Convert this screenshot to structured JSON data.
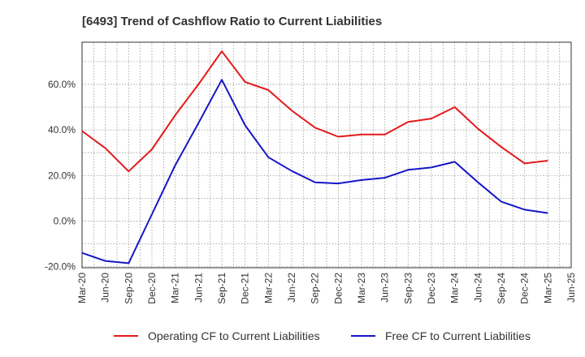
{
  "chart_data": {
    "type": "line",
    "title": "[6493]  Trend of Cashflow Ratio to Current Liabilities",
    "xlabel": "",
    "ylabel": "",
    "x": [
      "Mar-20",
      "Jun-20",
      "Sep-20",
      "Dec-20",
      "Mar-21",
      "Jun-21",
      "Sep-21",
      "Dec-21",
      "Mar-22",
      "Jun-22",
      "Sep-22",
      "Dec-22",
      "Mar-23",
      "Jun-23",
      "Sep-23",
      "Dec-23",
      "Mar-24",
      "Jun-24",
      "Sep-24",
      "Dec-24",
      "Mar-25",
      "Jun-25"
    ],
    "x_tick_labels": [
      "Mar-20",
      "Jun-20",
      "Sep-20",
      "Dec-20",
      "Mar-21",
      "Jun-21",
      "Sep-21",
      "Dec-21",
      "Mar-22",
      "Jun-22",
      "Sep-22",
      "Dec-22",
      "Mar-23",
      "Jun-23",
      "Sep-23",
      "Dec-23",
      "Mar-24",
      "Jun-24",
      "Sep-24",
      "Dec-24",
      "Mar-25",
      "Jun-25"
    ],
    "y_ticks": [
      -20,
      0,
      20,
      40,
      60
    ],
    "y_tick_labels": [
      "-20.0%",
      "0.0%",
      "20.0%",
      "40.0%",
      "60.0%"
    ],
    "ylim": [
      -20.5,
      78.5
    ],
    "grid": true,
    "legend_position": "bottom",
    "series": [
      {
        "name": "Operating CF to Current Liabilities",
        "color": "#e31a1c",
        "values": [
          39.5,
          32.0,
          21.8,
          31.5,
          46.5,
          60.0,
          74.5,
          61.0,
          57.5,
          48.5,
          41.0,
          37.0,
          38.0,
          38.0,
          43.5,
          45.0,
          50.0,
          40.5,
          32.5,
          25.3,
          26.5,
          null
        ]
      },
      {
        "name": "Free CF to Current Liabilities",
        "color": "#1616c8",
        "values": [
          -14.0,
          -17.5,
          -18.5,
          3.0,
          24.5,
          43.0,
          62.0,
          42.0,
          28.0,
          22.0,
          17.0,
          16.5,
          18.0,
          19.0,
          22.5,
          23.5,
          26.0,
          17.0,
          8.5,
          5.0,
          3.5,
          null
        ]
      }
    ]
  }
}
